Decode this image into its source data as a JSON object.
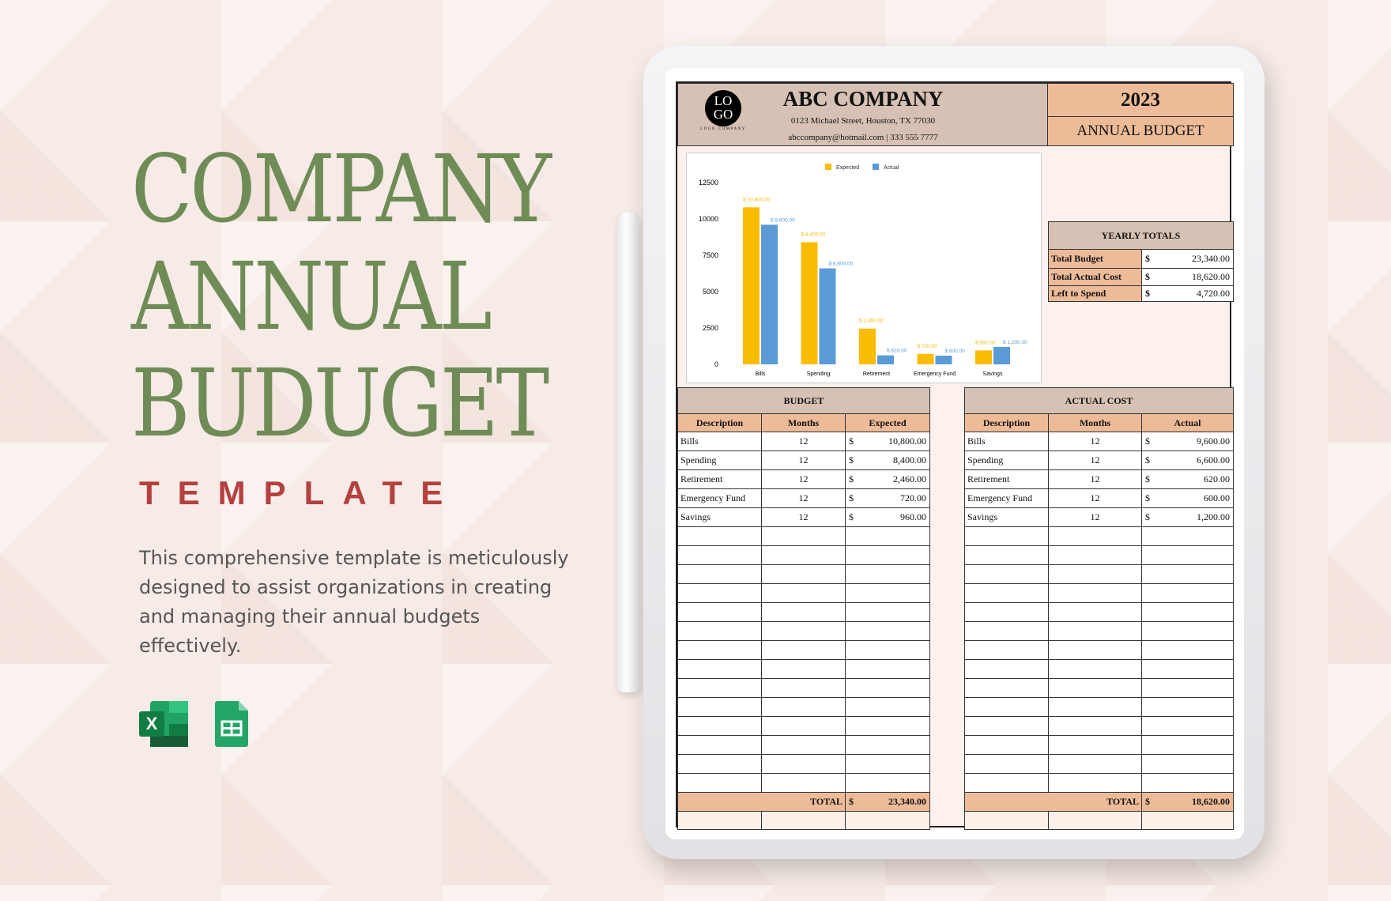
{
  "hero": {
    "line1": "COMPANY",
    "line2": "ANNUAL",
    "line3": "BUDUGET",
    "subtitle": "TEMPLATE",
    "description": "This comprehensive template is meticulously designed to assist organizations in creating and managing their annual budgets effectively.",
    "title_color": "#6f8c56",
    "subtitle_color": "#b4403f"
  },
  "apps": [
    "excel-icon",
    "google-sheets-icon"
  ],
  "sheet": {
    "logo_text_1": "LO",
    "logo_text_2": "GO",
    "logo_caption": "LOGO COMPANY",
    "company": "ABC COMPANY",
    "address": "0123 Michael Street, Houston, TX 77030",
    "contact": "abccompany@hotmail.com | 333 555 7777",
    "year": "2023",
    "doc_title": "ANNUAL BUDGET",
    "yearly_totals": {
      "title": "YEARLY TOTALS",
      "rows": [
        {
          "label": "Total Budget",
          "currency": "$",
          "value": "23,340.00"
        },
        {
          "label": "Total Actual Cost",
          "currency": "$",
          "value": "18,620.00"
        },
        {
          "label": "Left to Spend",
          "currency": "$",
          "value": "4,720.00"
        }
      ]
    },
    "budget": {
      "title": "BUDGET",
      "headers": [
        "Description",
        "Months",
        "Expected"
      ],
      "rows": [
        [
          "Bills",
          "12",
          "$",
          "10,800.00"
        ],
        [
          "Spending",
          "12",
          "$",
          "8,400.00"
        ],
        [
          "Retirement",
          "12",
          "$",
          "2,460.00"
        ],
        [
          "Emergency Fund",
          "12",
          "$",
          "720.00"
        ],
        [
          "Savings",
          "12",
          "$",
          "960.00"
        ]
      ],
      "total_label": "TOTAL",
      "total_currency": "$",
      "total": "23,340.00"
    },
    "actual": {
      "title": "ACTUAL COST",
      "headers": [
        "Description",
        "Months",
        "Actual"
      ],
      "rows": [
        [
          "Bills",
          "12",
          "$",
          "9,600.00"
        ],
        [
          "Spending",
          "12",
          "$",
          "6,600.00"
        ],
        [
          "Retirement",
          "12",
          "$",
          "620.00"
        ],
        [
          "Emergency Fund",
          "12",
          "$",
          "600.00"
        ],
        [
          "Savings",
          "12",
          "$",
          "1,200.00"
        ]
      ],
      "total_label": "TOTAL",
      "total_currency": "$",
      "total": "18,620.00"
    },
    "colors": {
      "header_tan": "#d6c1b4",
      "header_peach": "#edbb98"
    }
  },
  "chart_data": {
    "type": "bar",
    "categories": [
      "Bills",
      "Spending",
      "Retirement",
      "Emergency Fund",
      "Savings"
    ],
    "series": [
      {
        "name": "Expected",
        "color": "#fbbc04",
        "values": [
          10800,
          8400,
          2460,
          720,
          960
        ],
        "labels": [
          "$ 10,800.00",
          "$ 8,400.00",
          "$ 2,460.00",
          "$ 720.00",
          "$ 960.00"
        ]
      },
      {
        "name": "Actual",
        "color": "#5b9bd5",
        "values": [
          9600,
          6600,
          620,
          600,
          1200
        ],
        "labels": [
          "$ 9,600.00",
          "$ 6,600.00",
          "$ 620.00",
          "$ 600.00",
          "$ 1,200.00"
        ]
      }
    ],
    "yticks": [
      "0",
      "2500",
      "5000",
      "7500",
      "10000",
      "12500"
    ],
    "ylim": [
      0,
      12500
    ],
    "legend": "top",
    "grid": false
  }
}
